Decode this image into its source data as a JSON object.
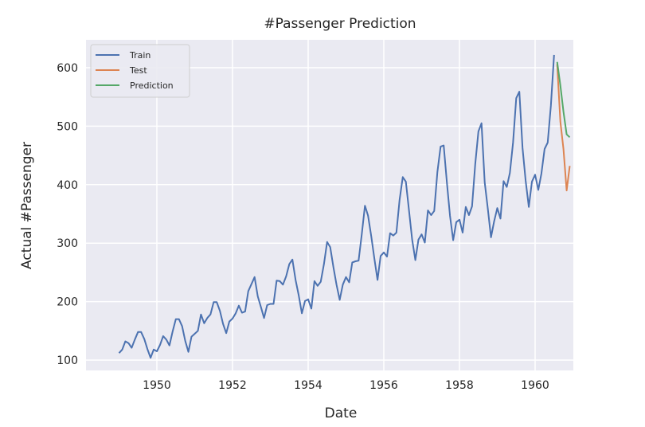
{
  "chart_data": {
    "type": "line",
    "title": "#Passenger Prediction",
    "xlabel": "Date",
    "ylabel": "Actual #Passenger",
    "xlim": [
      1948.75,
      1961.25
    ],
    "ylim": [
      82,
      648
    ],
    "x_ticks": [
      "1950",
      "1952",
      "1954",
      "1956",
      "1958",
      "1960"
    ],
    "y_ticks": [
      "100",
      "200",
      "300",
      "400",
      "500",
      "600"
    ],
    "grid": true,
    "legend_position": "top-left",
    "series": [
      {
        "name": "Train",
        "color": "#4c72b0",
        "start": "1949-01",
        "frequency": "monthly",
        "values": [
          112,
          118,
          132,
          129,
          121,
          135,
          148,
          148,
          136,
          119,
          104,
          118,
          115,
          126,
          141,
          135,
          125,
          149,
          170,
          170,
          158,
          133,
          114,
          140,
          145,
          150,
          178,
          163,
          172,
          178,
          199,
          199,
          184,
          162,
          146,
          166,
          171,
          180,
          193,
          181,
          183,
          218,
          230,
          242,
          209,
          191,
          172,
          194,
          196,
          196,
          236,
          235,
          229,
          243,
          264,
          272,
          237,
          211,
          180,
          201,
          204,
          188,
          235,
          227,
          234,
          264,
          302,
          293,
          259,
          229,
          203,
          229,
          242,
          233,
          267,
          269,
          270,
          315,
          364,
          347,
          312,
          274,
          237,
          278,
          284,
          277,
          317,
          313,
          318,
          374,
          413,
          405,
          355,
          306,
          271,
          306,
          315,
          301,
          356,
          348,
          355,
          422,
          465,
          467,
          404,
          347,
          305,
          336,
          340,
          318,
          362,
          348,
          363,
          435,
          491,
          505,
          404,
          359,
          310,
          337,
          360,
          342,
          406,
          396,
          420,
          472,
          548,
          559,
          463,
          407,
          362,
          405,
          417,
          391,
          419,
          461,
          472,
          535,
          622
        ]
      },
      {
        "name": "Test",
        "color": "#dd8452",
        "start": "1960-08",
        "frequency": "monthly",
        "values": [
          606,
          508,
          461,
          390,
          432
        ]
      },
      {
        "name": "Prediction",
        "color": "#55a868",
        "start": "1960-08",
        "frequency": "monthly",
        "values": [
          610,
          570,
          525,
          486,
          481
        ]
      }
    ]
  }
}
